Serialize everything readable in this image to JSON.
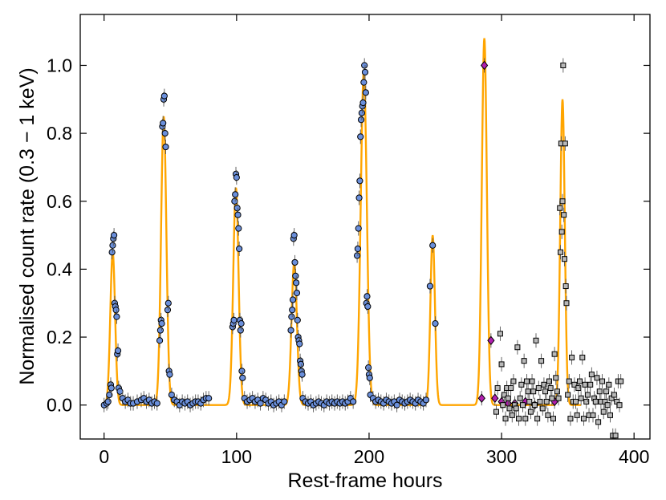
{
  "chart_data": {
    "type": "scatter",
    "xlabel": "Rest-frame hours",
    "ylabel": "Normalised count rate (0.3 − 1 keV)",
    "xlim": [
      -18,
      412
    ],
    "ylim": [
      -0.1,
      1.15
    ],
    "xticks": [
      0,
      100,
      200,
      300,
      400
    ],
    "xtick_labels": [
      "0",
      "100",
      "200",
      "300",
      "400"
    ],
    "yticks": [
      0.0,
      0.2,
      0.4,
      0.6,
      0.8,
      1.0
    ],
    "ytick_labels": [
      "0.0",
      "0.2",
      "0.4",
      "0.6",
      "0.8",
      "1.0"
    ],
    "grid": false,
    "colors": {
      "model": "#FFA500",
      "circles": "#6A8FDB",
      "diamonds": "#B21FB0",
      "squares": "#B8B8B8",
      "edge": "#000000"
    },
    "series": [
      {
        "marker": "circle",
        "points": [
          [
            0,
            0.0
          ],
          [
            2,
            0.005
          ],
          [
            3,
            0.01
          ],
          [
            4,
            0.03
          ],
          [
            5,
            0.06
          ],
          [
            5.5,
            0.05
          ],
          [
            6,
            0.45
          ],
          [
            6.5,
            0.47
          ],
          [
            7,
            0.49
          ],
          [
            7.5,
            0.5
          ],
          [
            8,
            0.3
          ],
          [
            8.5,
            0.29
          ],
          [
            9,
            0.28
          ],
          [
            9.5,
            0.26
          ],
          [
            10,
            0.15
          ],
          [
            10.5,
            0.16
          ],
          [
            11,
            0.05
          ],
          [
            12,
            0.04
          ],
          [
            14,
            0.02
          ],
          [
            16,
            0.01
          ],
          [
            18,
            0.015
          ],
          [
            20,
            0.005
          ],
          [
            22,
            0.005
          ],
          [
            25,
            0.01
          ],
          [
            28,
            0.015
          ],
          [
            30,
            0.02
          ],
          [
            32,
            0.01
          ],
          [
            34,
            0.015
          ],
          [
            36,
            0.005
          ],
          [
            38,
            0.01
          ],
          [
            40,
            0.005
          ],
          [
            42,
            0.19
          ],
          [
            42.5,
            0.22
          ],
          [
            43,
            0.25
          ],
          [
            43.5,
            0.24
          ],
          [
            44,
            0.82
          ],
          [
            44.5,
            0.83
          ],
          [
            45,
            0.9
          ],
          [
            45.5,
            0.91
          ],
          [
            46,
            0.8
          ],
          [
            46.5,
            0.76
          ],
          [
            48,
            0.28
          ],
          [
            48.5,
            0.3
          ],
          [
            49,
            0.1
          ],
          [
            49.5,
            0.09
          ],
          [
            51,
            0.03
          ],
          [
            53,
            0.015
          ],
          [
            55,
            0.01
          ],
          [
            57,
            0.0
          ],
          [
            59,
            0.01
          ],
          [
            61,
            0.005
          ],
          [
            63,
            0.01
          ],
          [
            65,
            0.0
          ],
          [
            67,
            0.005
          ],
          [
            69,
            0.01
          ],
          [
            71,
            0.01
          ],
          [
            73,
            0.005
          ],
          [
            75,
            0.015
          ],
          [
            77,
            0.02
          ],
          [
            79,
            0.02
          ],
          [
            97,
            0.23
          ],
          [
            97.5,
            0.24
          ],
          [
            98,
            0.25
          ],
          [
            98.5,
            0.6
          ],
          [
            99,
            0.62
          ],
          [
            99.5,
            0.68
          ],
          [
            100,
            0.67
          ],
          [
            100.5,
            0.58
          ],
          [
            101,
            0.56
          ],
          [
            101.5,
            0.52
          ],
          [
            102,
            0.46
          ],
          [
            102.5,
            0.25
          ],
          [
            103,
            0.22
          ],
          [
            103.5,
            0.24
          ],
          [
            104,
            0.1
          ],
          [
            104.5,
            0.08
          ],
          [
            106,
            0.02
          ],
          [
            108,
            0.01
          ],
          [
            110,
            0.015
          ],
          [
            112,
            0.02
          ],
          [
            114,
            0.01
          ],
          [
            116,
            0.015
          ],
          [
            118,
            0.005
          ],
          [
            120,
            0.02
          ],
          [
            122,
            0.015
          ],
          [
            124,
            0.005
          ],
          [
            126,
            0.01
          ],
          [
            128,
            0.0
          ],
          [
            130,
            0.005
          ],
          [
            132,
            0.01
          ],
          [
            134,
            0.0
          ],
          [
            136,
            0.01
          ],
          [
            141,
            0.22
          ],
          [
            141.5,
            0.26
          ],
          [
            142,
            0.28
          ],
          [
            142.5,
            0.31
          ],
          [
            143,
            0.49
          ],
          [
            143.5,
            0.5
          ],
          [
            144,
            0.42
          ],
          [
            144.5,
            0.38
          ],
          [
            145,
            0.36
          ],
          [
            145.5,
            0.33
          ],
          [
            146,
            0.25
          ],
          [
            146.5,
            0.2
          ],
          [
            147,
            0.19
          ],
          [
            147.5,
            0.18
          ],
          [
            148,
            0.13
          ],
          [
            148.5,
            0.12
          ],
          [
            149,
            0.1
          ],
          [
            149.5,
            0.09
          ],
          [
            150,
            0.02
          ],
          [
            152,
            0.01
          ],
          [
            154,
            0.005
          ],
          [
            156,
            0.01
          ],
          [
            158,
            0.0
          ],
          [
            160,
            0.005
          ],
          [
            162,
            0.01
          ],
          [
            164,
            0.005
          ],
          [
            166,
            0.0
          ],
          [
            168,
            0.01
          ],
          [
            170,
            0.005
          ],
          [
            172,
            0.01
          ],
          [
            174,
            0.005
          ],
          [
            176,
            0.01
          ],
          [
            178,
            0.005
          ],
          [
            180,
            0.01
          ],
          [
            182,
            0.005
          ],
          [
            184,
            0.01
          ],
          [
            186,
            0.02
          ],
          [
            188,
            0.01
          ],
          [
            191,
            0.44
          ],
          [
            191.5,
            0.46
          ],
          [
            192,
            0.52
          ],
          [
            192.5,
            0.61
          ],
          [
            193,
            0.66
          ],
          [
            193.5,
            0.79
          ],
          [
            194,
            0.84
          ],
          [
            194.5,
            0.86
          ],
          [
            195,
            0.88
          ],
          [
            195.5,
            0.89
          ],
          [
            196,
            0.95
          ],
          [
            196.5,
            1.0
          ],
          [
            197,
            0.98
          ],
          [
            197.5,
            0.92
          ],
          [
            198,
            0.3
          ],
          [
            198.5,
            0.32
          ],
          [
            199,
            0.29
          ],
          [
            199.5,
            0.11
          ],
          [
            200,
            0.09
          ],
          [
            200.5,
            0.08
          ],
          [
            201,
            0.03
          ],
          [
            203,
            0.02
          ],
          [
            205,
            0.01
          ],
          [
            207,
            0.015
          ],
          [
            209,
            0.01
          ],
          [
            211,
            0.005
          ],
          [
            213,
            0.015
          ],
          [
            215,
            0.01
          ],
          [
            217,
            0.005
          ],
          [
            219,
            0.01
          ],
          [
            221,
            0.0
          ],
          [
            223,
            0.015
          ],
          [
            225,
            0.01
          ],
          [
            227,
            0.005
          ],
          [
            229,
            0.01
          ],
          [
            231,
            0.015
          ],
          [
            233,
            0.01
          ],
          [
            235,
            0.005
          ],
          [
            237,
            0.015
          ],
          [
            239,
            0.01
          ],
          [
            241,
            0.005
          ],
          [
            243,
            0.015
          ],
          [
            246,
            0.35
          ],
          [
            248,
            0.47
          ],
          [
            250,
            0.24
          ]
        ]
      },
      {
        "marker": "diamond",
        "points": [
          [
            285,
            0.02
          ],
          [
            287,
            1.0
          ],
          [
            292,
            0.19
          ],
          [
            295,
            0.02
          ],
          [
            300,
            0.01
          ],
          [
            305,
            0.005
          ],
          [
            310,
            0.005
          ],
          [
            318,
            0.01
          ],
          [
            325,
            0.0
          ],
          [
            340,
            0.01
          ]
        ]
      },
      {
        "marker": "square",
        "points": [
          [
            296,
            -0.02
          ],
          [
            297,
            0.05
          ],
          [
            299,
            0.21
          ],
          [
            300,
            0.12
          ],
          [
            301,
            0.0
          ],
          [
            302,
            0.03
          ],
          [
            303,
            -0.04
          ],
          [
            304,
            0.05
          ],
          [
            305,
            0.02
          ],
          [
            306,
            -0.01
          ],
          [
            307,
            0.05
          ],
          [
            308,
            -0.03
          ],
          [
            309,
            0.07
          ],
          [
            310,
            0.0
          ],
          [
            311,
            -0.01
          ],
          [
            312,
            0.17
          ],
          [
            313,
            -0.04
          ],
          [
            314,
            0.02
          ],
          [
            315,
            0.06
          ],
          [
            316,
            0.0
          ],
          [
            317,
            0.13
          ],
          [
            318,
            -0.04
          ],
          [
            319,
            0.07
          ],
          [
            320,
            0.04
          ],
          [
            321,
            0.01
          ],
          [
            322,
            -0.02
          ],
          [
            323,
            0.07
          ],
          [
            324,
            0.04
          ],
          [
            325,
            0.0
          ],
          [
            326,
            0.19
          ],
          [
            327,
            -0.04
          ],
          [
            328,
            0.05
          ],
          [
            329,
            0.01
          ],
          [
            330,
            0.13
          ],
          [
            331,
            -0.01
          ],
          [
            332,
            0.06
          ],
          [
            333,
            0.04
          ],
          [
            334,
            0.01
          ],
          [
            335,
            -0.03
          ],
          [
            336,
            0.07
          ],
          [
            337,
            0.05
          ],
          [
            338,
            0.02
          ],
          [
            339,
            -0.04
          ],
          [
            340,
            0.15
          ],
          [
            341,
            0.08
          ],
          [
            342,
            0.04
          ],
          [
            343,
            0.02
          ],
          [
            344,
            0.58
          ],
          [
            345,
            0.77
          ],
          [
            346,
            0.6
          ],
          [
            347,
            0.56
          ],
          [
            348,
            0.77
          ],
          [
            346.5,
            1.0
          ],
          [
            344.5,
            0.45
          ],
          [
            345.5,
            0.51
          ],
          [
            347.5,
            0.43
          ],
          [
            348.5,
            0.35
          ],
          [
            349,
            0.3
          ],
          [
            350,
            0.03
          ],
          [
            351,
            0.07
          ],
          [
            352,
            -0.04
          ],
          [
            353,
            0.14
          ],
          [
            354,
            0.01
          ],
          [
            355,
            0.06
          ],
          [
            356,
            0.01
          ],
          [
            357,
            -0.03
          ],
          [
            358,
            0.05
          ],
          [
            359,
            0.07
          ],
          [
            360,
            0.02
          ],
          [
            361,
            0.14
          ],
          [
            362,
            -0.04
          ],
          [
            363,
            0.06
          ],
          [
            364,
            0.01
          ],
          [
            365,
            0.03
          ],
          [
            366,
            -0.03
          ],
          [
            367,
            0.06
          ],
          [
            368,
            0.09
          ],
          [
            369,
            -0.03
          ],
          [
            370,
            0.02
          ],
          [
            371,
            0.01
          ],
          [
            372,
            0.08
          ],
          [
            373,
            -0.05
          ],
          [
            374,
            0.04
          ],
          [
            375,
            0.01
          ],
          [
            376,
            0.07
          ],
          [
            377,
            -0.02
          ],
          [
            378,
            0.01
          ],
          [
            379,
            0.04
          ],
          [
            380,
            0.0
          ],
          [
            381,
            0.06
          ],
          [
            382,
            -0.03
          ],
          [
            383,
            0.02
          ],
          [
            384,
            -0.09
          ],
          [
            385,
            0.03
          ],
          [
            386,
            -0.09
          ],
          [
            387,
            0.01
          ],
          [
            388,
            0.07
          ],
          [
            389,
            0.0
          ],
          [
            390,
            0.07
          ]
        ]
      },
      {
        "type": "line",
        "flares": [
          {
            "center": 6.5,
            "amp": 0.45,
            "sigma": 1.8
          },
          {
            "center": 45.0,
            "amp": 0.85,
            "sigma": 2.0
          },
          {
            "center": 99.5,
            "amp": 0.64,
            "sigma": 2.0
          },
          {
            "center": 143.5,
            "amp": 0.42,
            "sigma": 2.0
          },
          {
            "center": 196.0,
            "amp": 0.98,
            "sigma": 2.3
          },
          {
            "center": 248.0,
            "amp": 0.5,
            "sigma": 1.7
          },
          {
            "center": 287.0,
            "amp": 1.08,
            "sigma": 1.9
          },
          {
            "center": 346.0,
            "amp": 0.9,
            "sigma": 1.7
          }
        ]
      }
    ]
  }
}
